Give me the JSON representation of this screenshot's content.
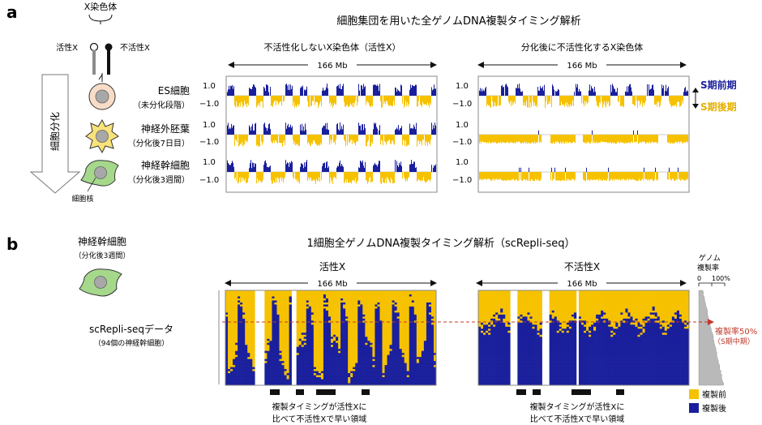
{
  "panel_a": {
    "letter": "a",
    "x_chrom_label": "X染色体",
    "active_label": "活性X",
    "inactive_label": "不活性X",
    "differentiation_label": "細胞分化",
    "nucleus_label": "細胞核",
    "title": "細胞集団を用いた全ゲノムDNA複製タイミング解析",
    "col_left_title": "不活性化しないX染色体（活性X）",
    "col_right_title": "分化後に不活性化するX染色体",
    "scale": "166 Mb",
    "rows": [
      {
        "name": "ES細胞",
        "sub": "（未分化段階）"
      },
      {
        "name": "神経外胚葉",
        "sub": "（分化後7日目）"
      },
      {
        "name": "神経幹細胞",
        "sub": "（分化後3週間）"
      }
    ],
    "y_top": "1.0",
    "y_bottom": "−1.0",
    "legend_early": "S期前期",
    "legend_late": "S期後期",
    "colors": {
      "early": "#1a1f9c",
      "late": "#f6c200",
      "cell_es": "#f7ddc8",
      "cell_ecto": "#f9e27a",
      "cell_nsc": "#a6d88c"
    }
  },
  "panel_b": {
    "letter": "b",
    "cell_name": "神経幹細胞",
    "cell_sub": "（分化後3週間）",
    "title": "1細胞全ゲノムDNA複製タイミング解析（scRepli-seq）",
    "left_title": "活性X",
    "right_title": "不活性X",
    "scale": "166 Mb",
    "data_label": "scRepli-seqデータ",
    "data_sub": "（94個の神経幹細胞）",
    "genome_rate_line1": "ゲノム",
    "genome_rate_line2": "複製率",
    "rate_tick_0": "0",
    "rate_tick_100": "100%",
    "rate50_line1": "複製率50%",
    "rate50_line2": "（S期中期）",
    "note_line1": "複製タイミングが活性Xに",
    "note_line2": "比べて不活性Xで早い領域",
    "legend_pre": "複製前",
    "legend_post": "複製後",
    "colors": {
      "pre": "#f6c200",
      "post": "#1a1f9c",
      "marker": "#c0392b"
    }
  }
}
